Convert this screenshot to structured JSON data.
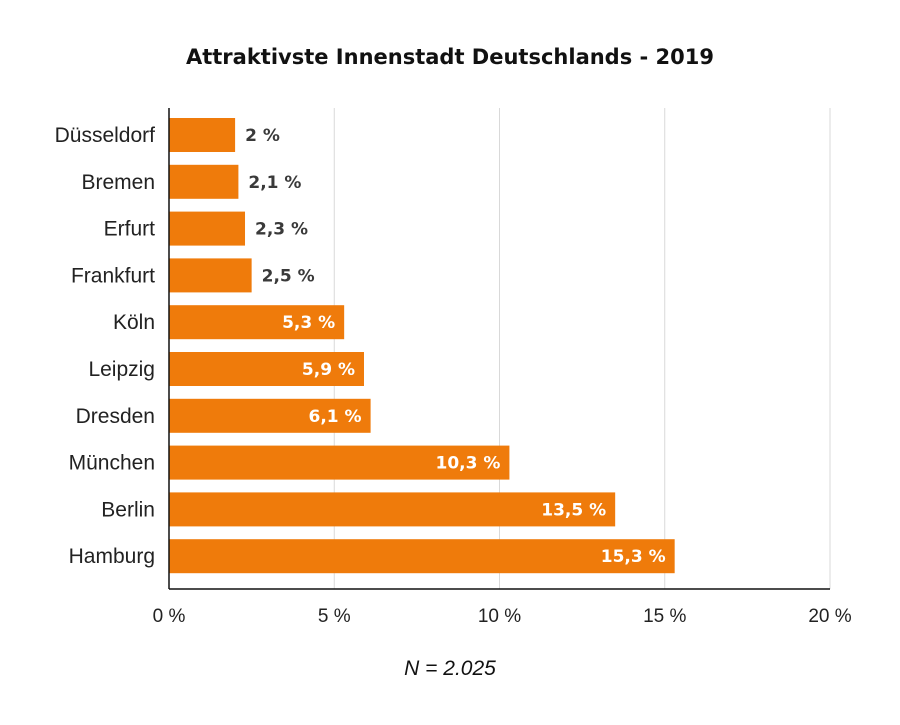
{
  "chart_data": {
    "type": "bar",
    "orientation": "horizontal",
    "title": "Attraktivste Innenstadt Deutschlands - 2019",
    "categories": [
      "Düsseldorf",
      "Bremen",
      "Erfurt",
      "Frankfurt",
      "Köln",
      "Leipzig",
      "Dresden",
      "München",
      "Berlin",
      "Hamburg"
    ],
    "values": [
      2,
      2.1,
      2.3,
      2.5,
      5.3,
      5.9,
      6.1,
      10.3,
      13.5,
      15.3
    ],
    "value_labels": [
      "2 %",
      "2,1 %",
      "2,3 %",
      "2,5 %",
      "5,3 %",
      "5,9 %",
      "6,1 %",
      "10,3 %",
      "13,5 %",
      "15,3 %"
    ],
    "xlim": [
      0,
      20
    ],
    "x_ticks": [
      0,
      5,
      10,
      15,
      20
    ],
    "x_tick_labels": [
      "0 %",
      "5 %",
      "10 %",
      "15 %",
      "20 %"
    ],
    "grid": "vertical",
    "bar_color": "#ef7b0b",
    "note": "N = 2.025"
  }
}
